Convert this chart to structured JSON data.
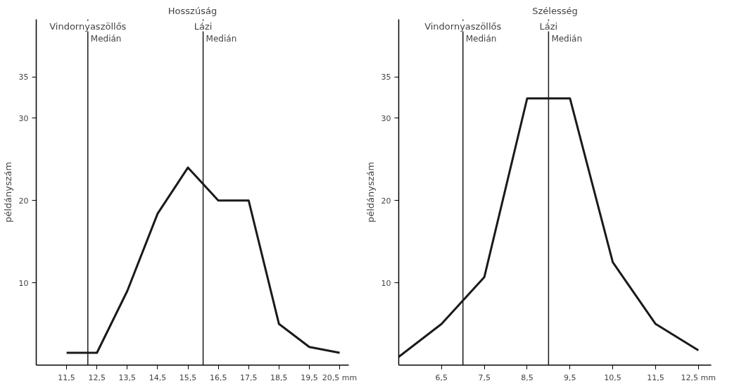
{
  "chart_data": [
    {
      "type": "line",
      "title": "Hosszúság",
      "ylabel": "példányszám",
      "x": [
        11.5,
        12.5,
        13.5,
        14.5,
        15.5,
        16.5,
        17.5,
        18.5,
        19.5,
        20.5
      ],
      "series": [
        {
          "color": "#1a1a1a",
          "values": [
            1.5,
            1.5,
            9,
            18.4,
            24,
            20,
            20,
            5,
            2.2,
            1.5
          ]
        }
      ],
      "xlim": [
        10.5,
        20.8
      ],
      "xticks": [
        {
          "value": 11.5,
          "label": "11,5"
        },
        {
          "value": 12.5,
          "label": "12,5"
        },
        {
          "value": 13.5,
          "label": "13,5"
        },
        {
          "value": 14.5,
          "label": "14,5"
        },
        {
          "value": 15.5,
          "label": "15,5"
        },
        {
          "value": 16.5,
          "label": "16,5"
        },
        {
          "value": 17.5,
          "label": "17,5"
        },
        {
          "value": 18.5,
          "label": "18,5"
        },
        {
          "value": 19.5,
          "label": "19,5"
        },
        {
          "value": 20.5,
          "label": "20,5 mm"
        }
      ],
      "ylim": [
        0,
        42
      ],
      "yticks": [
        10,
        20,
        30,
        35
      ],
      "grid": false,
      "marker": "none",
      "line_style": "solid",
      "ref_lines": [
        {
          "axis": "x",
          "value": 12.2,
          "label": "Vindornyaszöllős\nMedián",
          "color": "#1a1a1a"
        },
        {
          "axis": "x",
          "value": 16.0,
          "label": "Lázi\nMedián",
          "color": "#1a1a1a"
        }
      ]
    },
    {
      "type": "line",
      "title": "Szélesség",
      "ylabel": "példányszám",
      "x": [
        5.5,
        6.5,
        7.5,
        8.5,
        9.5,
        10.5,
        11.5,
        12.5
      ],
      "series": [
        {
          "color": "#1a1a1a",
          "values": [
            1,
            5,
            10.7,
            32.4,
            32.4,
            12.5,
            5,
            1.8
          ]
        }
      ],
      "xlim": [
        5.5,
        12.8
      ],
      "xticks": [
        {
          "value": 6.5,
          "label": "6,5"
        },
        {
          "value": 7.5,
          "label": "7,5"
        },
        {
          "value": 8.5,
          "label": "8,5"
        },
        {
          "value": 9.5,
          "label": "9,5"
        },
        {
          "value": 10.5,
          "label": "10,5"
        },
        {
          "value": 11.5,
          "label": "11,5"
        },
        {
          "value": 12.5,
          "label": "12,5 mm"
        }
      ],
      "ylim": [
        0,
        42
      ],
      "yticks": [
        10,
        20,
        30,
        35
      ],
      "grid": false,
      "marker": "none",
      "line_style": "solid",
      "ref_lines": [
        {
          "axis": "x",
          "value": 7.0,
          "label": "Vindornyaszöllős\nMedián",
          "color": "#1a1a1a"
        },
        {
          "axis": "x",
          "value": 9.0,
          "label": "Lázi\nMedián",
          "color": "#1a1a1a"
        }
      ]
    }
  ]
}
